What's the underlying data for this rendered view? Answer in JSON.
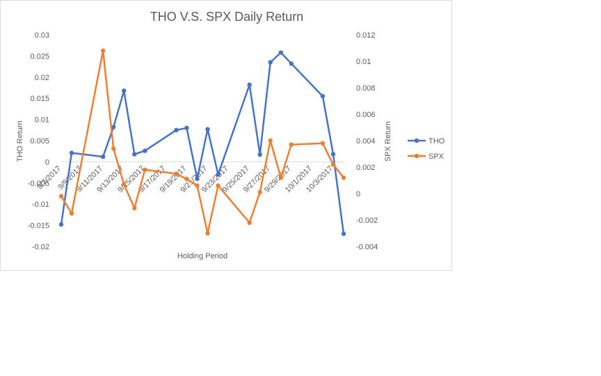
{
  "chart_data": {
    "type": "line",
    "title": "THO V.S. SPX Daily Return",
    "xlabel": "Holding Period",
    "ylabel_left": "THO Return",
    "ylabel_right": "SPX Return",
    "x_axis_type": "date",
    "x_ticks": [
      "9/7/2017",
      "9/9/2017",
      "9/11/2017",
      "9/13/2017",
      "9/15/2017",
      "9/17/2017",
      "9/19/2017",
      "9/21/2017",
      "9/23/2017",
      "9/25/2017",
      "9/27/2017",
      "9/29/2017",
      "10/1/2017",
      "10/3/2017"
    ],
    "ylim_left": [
      -0.02,
      0.03
    ],
    "yticks_left": [
      "0.03",
      "0.025",
      "0.02",
      "0.015",
      "0.01",
      "0.005",
      "0",
      "-0.005",
      "-0.01",
      "-0.015",
      "-0.02"
    ],
    "ylim_right": [
      -0.004,
      0.012
    ],
    "yticks_right": [
      "0.012",
      "0.01",
      "0.008",
      "0.006",
      "0.004",
      "0.002",
      "0",
      "-0.002",
      "-0.004"
    ],
    "grid": false,
    "legend_position": "right",
    "series": [
      {
        "name": "THO",
        "axis": "left",
        "color": "#4472c4",
        "points": [
          {
            "x": "2017-09-07",
            "y": -0.0148
          },
          {
            "x": "2017-09-08",
            "y": 0.0021
          },
          {
            "x": "2017-09-11",
            "y": 0.0012
          },
          {
            "x": "2017-09-12",
            "y": 0.0082
          },
          {
            "x": "2017-09-13",
            "y": 0.0168
          },
          {
            "x": "2017-09-14",
            "y": 0.0018
          },
          {
            "x": "2017-09-15",
            "y": 0.0026
          },
          {
            "x": "2017-09-18",
            "y": 0.0075
          },
          {
            "x": "2017-09-19",
            "y": 0.008
          },
          {
            "x": "2017-09-20",
            "y": -0.004
          },
          {
            "x": "2017-09-21",
            "y": 0.0077
          },
          {
            "x": "2017-09-22",
            "y": -0.003
          },
          {
            "x": "2017-09-25",
            "y": 0.0182
          },
          {
            "x": "2017-09-26",
            "y": 0.0017
          },
          {
            "x": "2017-09-27",
            "y": 0.0235
          },
          {
            "x": "2017-09-28",
            "y": 0.0258
          },
          {
            "x": "2017-09-29",
            "y": 0.0232
          },
          {
            "x": "2017-10-02",
            "y": 0.0155
          },
          {
            "x": "2017-10-03",
            "y": 0.0018
          },
          {
            "x": "2017-10-04",
            "y": -0.017
          }
        ]
      },
      {
        "name": "SPX",
        "axis": "right",
        "color": "#ed7d31",
        "points": [
          {
            "x": "2017-09-07",
            "y": -0.0002
          },
          {
            "x": "2017-09-08",
            "y": -0.0015
          },
          {
            "x": "2017-09-11",
            "y": 0.0108
          },
          {
            "x": "2017-09-12",
            "y": 0.0034
          },
          {
            "x": "2017-09-13",
            "y": 0.0007
          },
          {
            "x": "2017-09-14",
            "y": -0.0011
          },
          {
            "x": "2017-09-15",
            "y": 0.0018
          },
          {
            "x": "2017-09-18",
            "y": 0.0015
          },
          {
            "x": "2017-09-19",
            "y": 0.0011
          },
          {
            "x": "2017-09-20",
            "y": 0.0006
          },
          {
            "x": "2017-09-21",
            "y": -0.003
          },
          {
            "x": "2017-09-22",
            "y": 0.0006
          },
          {
            "x": "2017-09-25",
            "y": -0.0022
          },
          {
            "x": "2017-09-26",
            "y": 0.0001
          },
          {
            "x": "2017-09-27",
            "y": 0.004
          },
          {
            "x": "2017-09-28",
            "y": 0.0012
          },
          {
            "x": "2017-09-29",
            "y": 0.0037
          },
          {
            "x": "2017-10-02",
            "y": 0.0038
          },
          {
            "x": "2017-10-03",
            "y": 0.0022
          },
          {
            "x": "2017-10-04",
            "y": 0.0012
          }
        ]
      }
    ]
  }
}
